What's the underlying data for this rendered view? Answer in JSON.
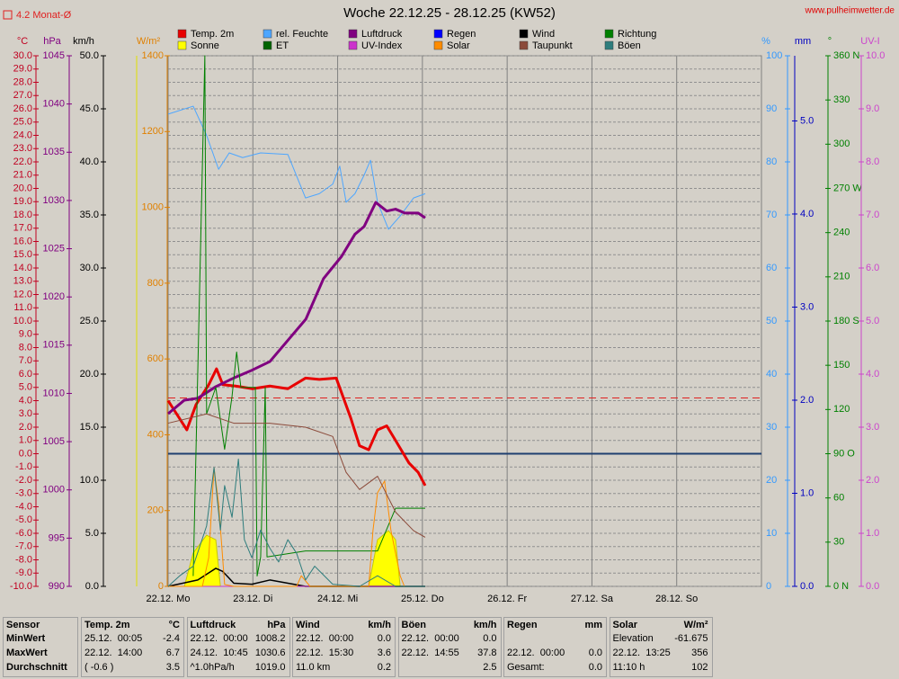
{
  "chart_data": {
    "type": "line",
    "title": "Woche 22.12.25 - 28.12.25 (KW52)",
    "source": "www.pulheimwetter.de",
    "reference": {
      "value": 4.2,
      "label": "4.2 Monat-Ø",
      "color": "#e02020",
      "axis": "°C"
    },
    "xlim": [
      0,
      168
    ],
    "xticks": [
      {
        "value": 0,
        "label": "22.12.  Mo"
      },
      {
        "value": 24,
        "label": "23.12.  Di"
      },
      {
        "value": 48,
        "label": "24.12.  Mi"
      },
      {
        "value": 72,
        "label": "25.12.  Do"
      },
      {
        "value": 96,
        "label": "26.12.  Fr"
      },
      {
        "value": 120,
        "label": "27.12.  Sa"
      },
      {
        "value": 144,
        "label": "28.12.  So"
      }
    ],
    "grid": true,
    "axes": [
      {
        "unit": "°C",
        "color": "#c00020",
        "ylim": [
          -10,
          30
        ],
        "grid": true,
        "zero_line": "#1f3f6f",
        "yticks": [
          {
            "value": -10,
            "label": "-10.0"
          },
          {
            "value": -9,
            "label": "-9.0"
          },
          {
            "value": -8,
            "label": "-8.0"
          },
          {
            "value": -7,
            "label": "-7.0"
          },
          {
            "value": -6,
            "label": "-6.0"
          },
          {
            "value": -5,
            "label": "-5.0"
          },
          {
            "value": -4,
            "label": "-4.0"
          },
          {
            "value": -3,
            "label": "-3.0"
          },
          {
            "value": -2,
            "label": "-2.0"
          },
          {
            "value": -1,
            "label": "-1.0"
          },
          {
            "value": 0,
            "label": "0.0"
          },
          {
            "value": 1,
            "label": "1.0"
          },
          {
            "value": 2,
            "label": "2.0"
          },
          {
            "value": 3,
            "label": "3.0"
          },
          {
            "value": 4,
            "label": "4.0"
          },
          {
            "value": 5,
            "label": "5.0"
          },
          {
            "value": 6,
            "label": "6.0"
          },
          {
            "value": 7,
            "label": "7.0"
          },
          {
            "value": 8,
            "label": "8.0"
          },
          {
            "value": 9,
            "label": "9.0"
          },
          {
            "value": 10,
            "label": "10.0"
          },
          {
            "value": 11,
            "label": "11.0"
          },
          {
            "value": 12,
            "label": "12.0"
          },
          {
            "value": 13,
            "label": "13.0"
          },
          {
            "value": 14,
            "label": "14.0"
          },
          {
            "value": 15,
            "label": "15.0"
          },
          {
            "value": 16,
            "label": "16.0"
          },
          {
            "value": 17,
            "label": "17.0"
          },
          {
            "value": 18,
            "label": "18.0"
          },
          {
            "value": 19,
            "label": "19.0"
          },
          {
            "value": 20,
            "label": "20.0"
          },
          {
            "value": 21,
            "label": "21.0"
          },
          {
            "value": 22,
            "label": "22.0"
          },
          {
            "value": 23,
            "label": "23.0"
          },
          {
            "value": 24,
            "label": "24.0"
          },
          {
            "value": 25,
            "label": "25.0"
          },
          {
            "value": 26,
            "label": "26.0"
          },
          {
            "value": 27,
            "label": "27.0"
          },
          {
            "value": 28,
            "label": "28.0"
          },
          {
            "value": 29,
            "label": "29.0"
          },
          {
            "value": 30,
            "label": "30.0"
          }
        ]
      },
      {
        "unit": "hPa",
        "color": "#800080",
        "ylim": [
          990,
          1045
        ],
        "yticks": [
          990,
          995,
          1000,
          1005,
          1010,
          1015,
          1020,
          1025,
          1030,
          1035,
          1040,
          1045
        ]
      },
      {
        "unit": "km/h",
        "color": "#000000",
        "ylim": [
          0,
          50
        ],
        "yticks": [
          {
            "value": 0,
            "label": "0.0"
          },
          {
            "value": 5,
            "label": "5.0"
          },
          {
            "value": 10,
            "label": "10.0"
          },
          {
            "value": 15,
            "label": "15.0"
          },
          {
            "value": 20,
            "label": "20.0"
          },
          {
            "value": 25,
            "label": "25.0"
          },
          {
            "value": 30,
            "label": "30.0"
          },
          {
            "value": 35,
            "label": "35.0"
          },
          {
            "value": 40,
            "label": "40.0"
          },
          {
            "value": 45,
            "label": "45.0"
          },
          {
            "value": 50,
            "label": "50.0"
          }
        ]
      },
      {
        "unit": "W/m²",
        "color": "#e08000",
        "ylim": [
          0,
          1400
        ],
        "yticks": [
          0,
          200,
          400,
          600,
          800,
          1000,
          1200,
          1400
        ]
      },
      {
        "unit": "%",
        "color": "#3399ff",
        "ylim": [
          0,
          100
        ],
        "yticks": [
          0,
          10,
          20,
          30,
          40,
          50,
          60,
          70,
          80,
          90,
          100
        ]
      },
      {
        "unit": "mm",
        "color": "#0000c0",
        "ylim": [
          0,
          5.7
        ],
        "yticks": [
          {
            "value": 0,
            "label": "0.0"
          },
          {
            "value": 1,
            "label": "1.0"
          },
          {
            "value": 2,
            "label": "2.0"
          },
          {
            "value": 3,
            "label": "3.0"
          },
          {
            "value": 4,
            "label": "4.0"
          },
          {
            "value": 5,
            "label": "5.0"
          }
        ]
      },
      {
        "unit": "°",
        "color": "#008000",
        "ylim": [
          0,
          360
        ],
        "yticks": [
          {
            "value": 0,
            "label": "0 N"
          },
          30,
          60,
          {
            "value": 90,
            "label": "90 O"
          },
          120,
          150,
          {
            "value": 180,
            "label": "180 S"
          },
          210,
          240,
          {
            "value": 270,
            "label": "270 W"
          },
          300,
          330,
          {
            "value": 360,
            "label": "360 N"
          }
        ]
      },
      {
        "unit": "UV-I",
        "color": "#cc44cc",
        "ylim": [
          0,
          10
        ],
        "yticks": [
          {
            "value": 0,
            "label": "0.0"
          },
          {
            "value": 1,
            "label": "1.0"
          },
          {
            "value": 2,
            "label": "2.0"
          },
          {
            "value": 3,
            "label": "3.0"
          },
          {
            "value": 4,
            "label": "4.0"
          },
          {
            "value": 5,
            "label": "5.0"
          },
          {
            "value": 6,
            "label": "6.0"
          },
          {
            "value": 7,
            "label": "7.0"
          },
          {
            "value": 8,
            "label": "8.0"
          },
          {
            "value": 9,
            "label": "9.0"
          },
          {
            "value": 10,
            "label": "10.0"
          }
        ]
      }
    ],
    "series": [
      {
        "name": "Temp. 2m",
        "color": "#e80000",
        "axis": "°C",
        "width": 3,
        "x": [
          0,
          5.3,
          7.9,
          11.5,
          13.7,
          15.5,
          19.1,
          23.9,
          28.8,
          33.9,
          38.9,
          42.8,
          47.6,
          51.7,
          54.2,
          56.8,
          59.3,
          61.9,
          64.4,
          68.2,
          70.8,
          72.8
        ],
        "values": [
          4.0,
          1.8,
          3.7,
          5.2,
          6.4,
          5.2,
          5.1,
          4.9,
          5.1,
          4.9,
          5.7,
          5.6,
          5.7,
          2.7,
          0.6,
          0.3,
          1.8,
          2.1,
          1.0,
          -0.7,
          -1.4,
          -2.4
        ]
      },
      {
        "name": "rel. Feuchte",
        "color": "#4da6ff",
        "axis": "%",
        "width": 1,
        "x": [
          0,
          7.1,
          10.9,
          14.3,
          17.3,
          21.1,
          26.2,
          33.9,
          38.9,
          42.8,
          46.6,
          48.6,
          50.4,
          52.9,
          55.5,
          57.3,
          59.3,
          62.4,
          65.7,
          69.5,
          72.8
        ],
        "values": [
          89,
          90.5,
          85,
          78.6,
          81.7,
          80.8,
          81.7,
          81.4,
          73.2,
          74,
          75.8,
          79.2,
          72.4,
          74,
          77.5,
          80.3,
          72.4,
          67.3,
          69.8,
          73.2,
          74
        ]
      },
      {
        "name": "Luftdruck",
        "color": "#800080",
        "axis": "hPa",
        "width": 3,
        "x": [
          0,
          4.6,
          8.4,
          13.5,
          18.6,
          23.7,
          28.8,
          33.9,
          39.0,
          44.0,
          49.1,
          52.9,
          55.5,
          58.8,
          61.9,
          64.4,
          67.0,
          70.8,
          72.8
        ],
        "values": [
          1007.9,
          1009.3,
          1009.5,
          1010.7,
          1011.6,
          1012.4,
          1013.3,
          1015.5,
          1017.7,
          1021.9,
          1024.2,
          1026.5,
          1027.3,
          1029.8,
          1028.9,
          1029.1,
          1028.7,
          1028.7,
          1028.2
        ]
      },
      {
        "name": "Regen",
        "color": "#0000ff",
        "axis": "mm",
        "width": 1,
        "x": [
          0,
          72.8
        ],
        "values": [
          0,
          0
        ]
      },
      {
        "name": "Wind",
        "color": "#000000",
        "axis": "km/h",
        "width": 1.5,
        "x": [
          0,
          8.4,
          13.5,
          15.5,
          18.6,
          23.7,
          28.8,
          38.9,
          72.8
        ],
        "values": [
          0,
          0.6,
          1.7,
          1.4,
          0.3,
          0.2,
          0.6,
          0,
          0
        ]
      },
      {
        "name": "Richtung",
        "color": "#008000",
        "axis": "°",
        "width": 1,
        "x": [
          7.1,
          10.4,
          10.9,
          13.5,
          16.0,
          18.1,
          19.4,
          20.6,
          24.7,
          25.2,
          26.2,
          27.5,
          28.0,
          38.9,
          59.3,
          64.4,
          72.8
        ],
        "values": [
          7,
          360,
          117,
          135,
          93,
          129,
          159,
          135,
          135,
          7,
          20,
          135,
          20,
          24,
          24,
          53,
          53
        ]
      },
      {
        "name": "Sonne",
        "color": "#ffff00",
        "axis": "W/m²",
        "area": true,
        "x": [
          4.6,
          7.1,
          10.9,
          13.5,
          14.8,
          30,
          56.8,
          59.3,
          62.4,
          64.4,
          65.7
        ],
        "values": [
          0,
          88,
          135,
          123,
          0,
          null,
          0,
          123,
          147,
          123,
          0
        ]
      },
      {
        "name": "ET",
        "color": "#006400",
        "axis": "mm",
        "width": 1,
        "x": [
          0,
          72.8
        ],
        "values": [
          0,
          0
        ]
      },
      {
        "name": "UV-Index",
        "color": "#cc33cc",
        "axis": "UV-I",
        "width": 1,
        "x": [
          0,
          72.8
        ],
        "values": [
          0,
          0
        ]
      },
      {
        "name": "Solar",
        "color": "#ff8c00",
        "axis": "W/m²",
        "width": 1,
        "x": [
          0,
          9.7,
          11.5,
          13.0,
          14.3,
          16.0,
          18.6,
          36.4,
          37.7,
          40.2,
          56.8,
          58.0,
          59.3,
          61.3,
          63.1,
          65.7,
          66.9,
          72.8
        ],
        "values": [
          0,
          0,
          76,
          313,
          218,
          5,
          0,
          0,
          28,
          0,
          0,
          147,
          247,
          278,
          147,
          28,
          0,
          0
        ]
      },
      {
        "name": "Taupunkt",
        "color": "#8b4a3a",
        "axis": "°C",
        "width": 1,
        "x": [
          0,
          10.9,
          18.6,
          28.8,
          38.9,
          46.6,
          50.4,
          54.2,
          59.3,
          64.4,
          69.5,
          72.8
        ],
        "values": [
          2.3,
          3.0,
          2.3,
          2.3,
          2.0,
          1.3,
          -1.4,
          -2.7,
          -1.7,
          -4.4,
          -5.8,
          -6.3
        ]
      },
      {
        "name": "Böen",
        "color": "#2e7d7d",
        "axis": "km/h",
        "width": 1,
        "x": [
          0,
          3.3,
          7.1,
          10.9,
          13.0,
          14.8,
          16.0,
          18.1,
          19.9,
          21.6,
          23.7,
          26.2,
          28.8,
          31.3,
          33.9,
          36.4,
          38.9,
          41.5,
          46.6,
          54.2,
          59.3,
          64.4,
          72.8
        ],
        "values": [
          0,
          1.0,
          1.9,
          5.7,
          11.2,
          5.3,
          9.5,
          6.5,
          12.0,
          4.4,
          2.7,
          5.3,
          3.6,
          2.3,
          4.4,
          3.1,
          0.6,
          1.9,
          0.2,
          0,
          1.0,
          0,
          0
        ]
      }
    ],
    "table": {
      "first": {
        "title": "Sensor",
        "rows": [
          "MinWert",
          "MaxWert",
          "Durchschnitt"
        ]
      },
      "groups": [
        {
          "title": "Temp. 2m",
          "unit": "°C",
          "rows": [
            [
              "25.12.  00:05",
              "-2.4"
            ],
            [
              "22.12.  14:00",
              "6.7"
            ],
            [
              "( -0.6 )",
              "3.5"
            ]
          ]
        },
        {
          "title": "Luftdruck",
          "unit": "hPa",
          "rows": [
            [
              "22.12.  00:00",
              "1008.2"
            ],
            [
              "24.12.  10:45",
              "1030.6"
            ],
            [
              "^1.0hPa/h",
              "1019.0"
            ]
          ]
        },
        {
          "title": "Wind",
          "unit": "km/h",
          "rows": [
            [
              "22.12.  00:00",
              "0.0"
            ],
            [
              "22.12.  15:30",
              "3.6"
            ],
            [
              "11.0 km",
              "0.2"
            ]
          ]
        },
        {
          "title": "Böen",
          "unit": "km/h",
          "rows": [
            [
              "22.12.  00:00",
              "0.0"
            ],
            [
              "22.12.  14:55",
              "37.8"
            ],
            [
              null,
              "2.5"
            ]
          ]
        },
        {
          "title": "Regen",
          "unit": "mm",
          "rows": [
            [
              null,
              null
            ],
            [
              "22.12.  00:00",
              "0.0"
            ],
            [
              "Gesamt:",
              "0.0"
            ]
          ]
        },
        {
          "title": "Solar",
          "unit": "W/m²",
          "rows": [
            [
              "Elevation",
              "-61.675"
            ],
            [
              "22.12.  13:25",
              "356"
            ],
            [
              "11:10 h",
              "102"
            ]
          ]
        }
      ]
    }
  }
}
